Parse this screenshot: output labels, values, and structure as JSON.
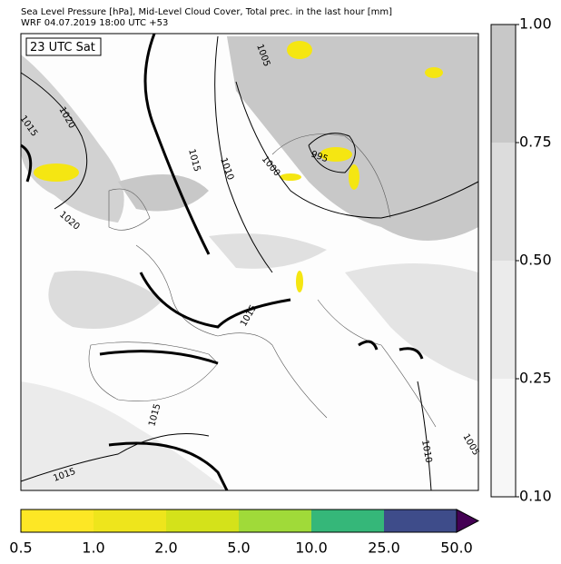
{
  "header": {
    "line1": "Sea Level Pressure [hPa], Mid-Level Cloud Cover, Total prec. in the last hour [mm]",
    "line2": "WRF 04.07.2019 18:00 UTC +53"
  },
  "time_label": "23 UTC Sat",
  "isobar_labels": [
    "1005",
    "1015",
    "1020",
    "1015",
    "1010",
    "1000",
    "995",
    "1020",
    "1015",
    "1015",
    "1015",
    "1010",
    "1005"
  ],
  "cloud_colorbar": {
    "labels": [
      "1.00",
      "0.75",
      "0.50",
      "0.25",
      "0.10"
    ],
    "colors": [
      "#c8c8c8",
      "#dcdcdc",
      "#ebebeb",
      "#f7f7f7"
    ]
  },
  "precip_colorbar": {
    "labels": [
      "0.5",
      "1.0",
      "2.0",
      "5.0",
      "10.0",
      "25.0",
      "50.0"
    ],
    "colors": [
      "#fde725",
      "#eee51c",
      "#d4e21a",
      "#a0da39",
      "#35b779",
      "#3e4c8a",
      "#440154"
    ]
  }
}
